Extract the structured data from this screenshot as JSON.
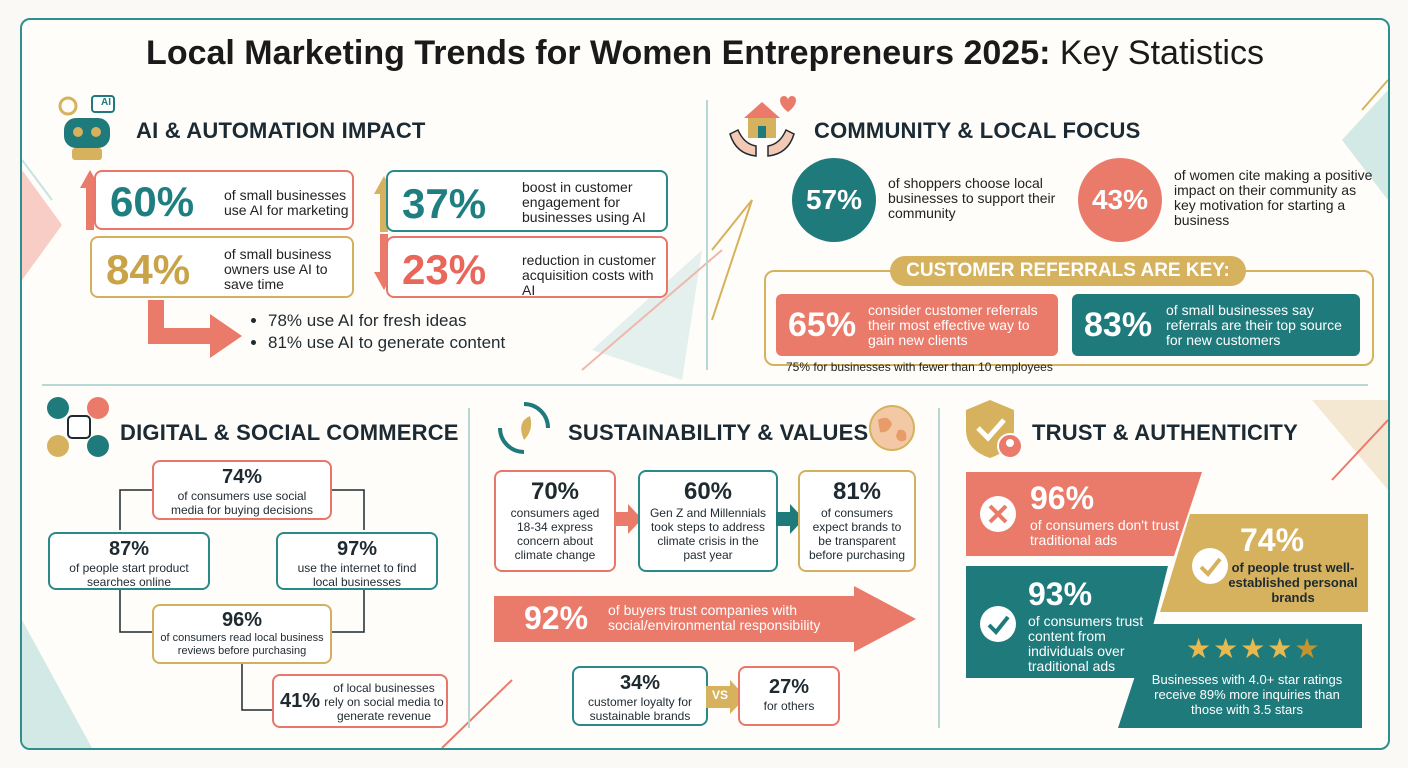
{
  "title_bold": "Local Marketing Trends for Women Entrepreneurs 2025:",
  "title_light": " Key Statistics",
  "ai": {
    "title": "AI & AUTOMATION IMPACT",
    "icon_label": "AI",
    "s1_pct": "60%",
    "s1_txt": "of small businesses use AI for marketing",
    "s2_pct": "84%",
    "s2_txt": "of small business owners use AI to save time",
    "s3_pct": "37%",
    "s3_txt": "boost in customer engagement for businesses using AI",
    "s4_pct": "23%",
    "s4_txt": "reduction in customer acquisition costs with AI",
    "bullets": [
      "78% use AI for fresh ideas",
      "81% use AI to generate content"
    ]
  },
  "community": {
    "title": "COMMUNITY & LOCAL FOCUS",
    "c1_pct": "57%",
    "c1_txt": "of shoppers choose local businesses to support their community",
    "c2_pct": "43%",
    "c2_txt": "of women cite making a positive impact on their community as key motivation for starting a business",
    "ref_title": "CUSTOMER REFERRALS ARE KEY:",
    "r1_pct": "65%",
    "r1_txt": "consider customer referrals their most effective way to gain new clients",
    "r2_pct": "83%",
    "r2_txt": "of small businesses say referrals are their top source for new customers",
    "footnote": "75% for businesses with fewer than 10 employees"
  },
  "digital": {
    "title": "DIGITAL & SOCIAL COMMERCE",
    "d1_pct": "74%",
    "d1_txt": "of consumers use social media for buying decisions",
    "d2_pct": "87%",
    "d2_txt": "of people start product searches online",
    "d3_pct": "97%",
    "d3_txt": "use the internet to find local businesses",
    "d4_pct": "96%",
    "d4_txt": "of consumers read local business reviews before purchasing",
    "d5_pct": "41%",
    "d5_txt": "of local businesses rely on social media to generate revenue"
  },
  "sustain": {
    "title": "SUSTAINABILITY & VALUES",
    "s1_pct": "70%",
    "s1_txt": "consumers aged 18-34 express concern about climate change",
    "s2_pct": "60%",
    "s2_txt": "Gen Z and Millennials took steps to address climate crisis in the past year",
    "s3_pct": "81%",
    "s3_txt": "of consumers expect brands to be transparent before purchasing",
    "arrow_pct": "92%",
    "arrow_txt": "of buyers trust companies with social/environmental responsibility",
    "l_pct": "34%",
    "l_txt": "customer loyalty for sustainable brands",
    "vs": "VS",
    "o_pct": "27%",
    "o_txt": "for others"
  },
  "trust": {
    "title": "TRUST & AUTHENTICITY",
    "t1_pct": "96%",
    "t1_txt": "of consumers don't trust traditional ads",
    "t2_pct": "74%",
    "t2_txt": "of people trust well-established personal brands",
    "t3_pct": "93%",
    "t3_txt": "of consumers trust content from individuals over traditional ads",
    "stars": "4.5",
    "t4_txt": "Businesses with 4.0+ star ratings receive 89% more inquiries than those with 3.5 stars"
  },
  "colors": {
    "red": "#ea7a6a",
    "teal": "#1f7a7c",
    "gold": "#d6b25e"
  }
}
